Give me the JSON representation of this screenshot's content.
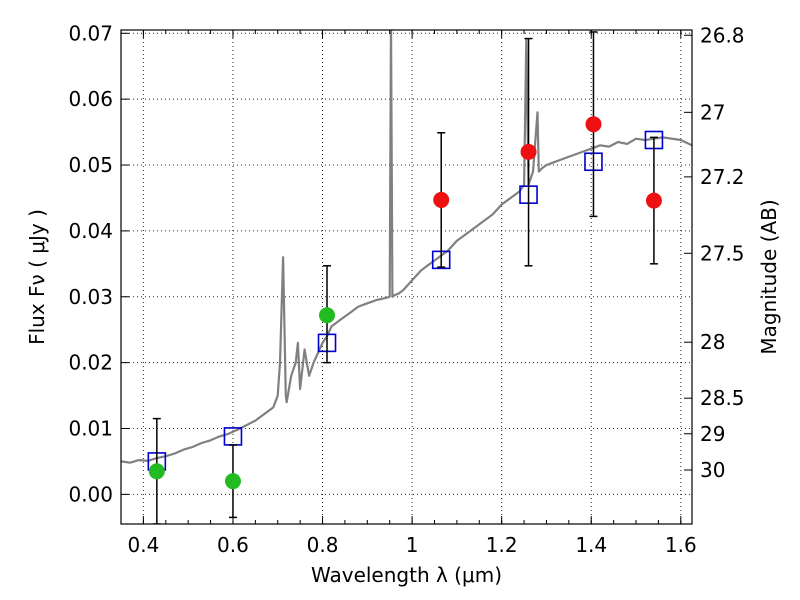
{
  "chart_data": {
    "type": "scatter",
    "title": "",
    "xlabel": "Wavelength  λ (μm)",
    "ylabel": "Flux  Fν  ( μJy )",
    "ylabel_right": "Magnitude (AB)",
    "xlim": [
      0.35,
      1.625
    ],
    "ylim": [
      -0.0045,
      0.0705
    ],
    "grid": true,
    "x_ticks": [
      0.4,
      0.6,
      0.8,
      1.0,
      1.2,
      1.4,
      1.6
    ],
    "x_tick_labels": [
      "0.4",
      "0.6",
      "0.8",
      "1",
      "1.2",
      "1.4",
      "1.6"
    ],
    "y_ticks": [
      0.0,
      0.01,
      0.02,
      0.03,
      0.04,
      0.05,
      0.06,
      0.07
    ],
    "y_tick_labels": [
      "0.00",
      "0.01",
      "0.02",
      "0.03",
      "0.04",
      "0.05",
      "0.06",
      "0.07"
    ],
    "mag_ticks": [
      {
        "label": "26.8",
        "flux": 0.0697
      },
      {
        "label": "27",
        "flux": 0.058
      },
      {
        "label": "27.2",
        "flux": 0.0482
      },
      {
        "label": "27.5",
        "flux": 0.0366
      },
      {
        "label": "28",
        "flux": 0.0231
      },
      {
        "label": "28.5",
        "flux": 0.0146
      },
      {
        "label": "29",
        "flux": 0.0092
      },
      {
        "label": "30",
        "flux": 0.0037
      }
    ],
    "series": [
      {
        "kind": "line",
        "color": "#808080",
        "x": [
          0.35,
          0.37,
          0.39,
          0.41,
          0.43,
          0.45,
          0.47,
          0.49,
          0.51,
          0.53,
          0.55,
          0.57,
          0.59,
          0.61,
          0.63,
          0.65,
          0.67,
          0.69,
          0.7,
          0.705,
          0.712,
          0.718,
          0.72,
          0.73,
          0.74,
          0.745,
          0.75,
          0.76,
          0.77,
          0.78,
          0.79,
          0.8,
          0.81,
          0.82,
          0.84,
          0.86,
          0.88,
          0.9,
          0.92,
          0.94,
          0.95,
          0.953,
          0.956,
          0.96,
          0.97,
          0.98,
          1.0,
          1.02,
          1.04,
          1.06,
          1.08,
          1.1,
          1.12,
          1.14,
          1.16,
          1.18,
          1.2,
          1.22,
          1.24,
          1.25,
          1.255,
          1.26,
          1.265,
          1.27,
          1.28,
          1.283,
          1.29,
          1.3,
          1.32,
          1.34,
          1.36,
          1.38,
          1.4,
          1.42,
          1.44,
          1.46,
          1.48,
          1.5,
          1.52,
          1.54,
          1.56,
          1.58,
          1.6,
          1.625
        ],
        "y": [
          0.005,
          0.0048,
          0.0052,
          0.0051,
          0.0055,
          0.0058,
          0.0062,
          0.0068,
          0.0072,
          0.0078,
          0.0082,
          0.0088,
          0.0092,
          0.0098,
          0.0105,
          0.0112,
          0.0122,
          0.0132,
          0.015,
          0.02,
          0.036,
          0.015,
          0.014,
          0.018,
          0.02,
          0.023,
          0.016,
          0.022,
          0.018,
          0.02,
          0.0215,
          0.023,
          0.024,
          0.0255,
          0.0265,
          0.0275,
          0.0285,
          0.029,
          0.0295,
          0.0298,
          0.03,
          0.072,
          0.03,
          0.0302,
          0.0305,
          0.031,
          0.0325,
          0.034,
          0.035,
          0.036,
          0.037,
          0.0385,
          0.0395,
          0.0405,
          0.0415,
          0.0425,
          0.044,
          0.045,
          0.046,
          0.047,
          0.069,
          0.047,
          0.048,
          0.049,
          0.058,
          0.049,
          0.0495,
          0.05,
          0.0505,
          0.051,
          0.0515,
          0.052,
          0.0525,
          0.053,
          0.0528,
          0.0535,
          0.0532,
          0.054,
          0.0538,
          0.054,
          0.0542,
          0.054,
          0.0538,
          0.053
        ]
      },
      {
        "kind": "markers",
        "marker": "square",
        "color": "#0000cc",
        "x": [
          0.43,
          0.6,
          0.81,
          1.065,
          1.26,
          1.405,
          1.54
        ],
        "y": [
          0.005,
          0.0088,
          0.023,
          0.0356,
          0.0455,
          0.0505,
          0.0538
        ]
      },
      {
        "kind": "markers",
        "marker": "circle",
        "color": "#22bb22",
        "x": [
          0.43,
          0.6,
          0.81
        ],
        "y": [
          0.0035,
          0.002,
          0.0272
        ],
        "yerr_low": [
          0.008,
          0.0055,
          0.0072
        ],
        "yerr_high": [
          0.008,
          0.0055,
          0.0075
        ]
      },
      {
        "kind": "markers",
        "marker": "circle",
        "color": "#ee1111",
        "x": [
          1.065,
          1.26,
          1.405,
          1.54
        ],
        "y": [
          0.0447,
          0.052,
          0.0562,
          0.0446
        ],
        "yerr_low": [
          0.0102,
          0.0173,
          0.014,
          0.0096
        ],
        "yerr_high": [
          0.0102,
          0.0172,
          0.014,
          0.0096
        ]
      }
    ]
  }
}
